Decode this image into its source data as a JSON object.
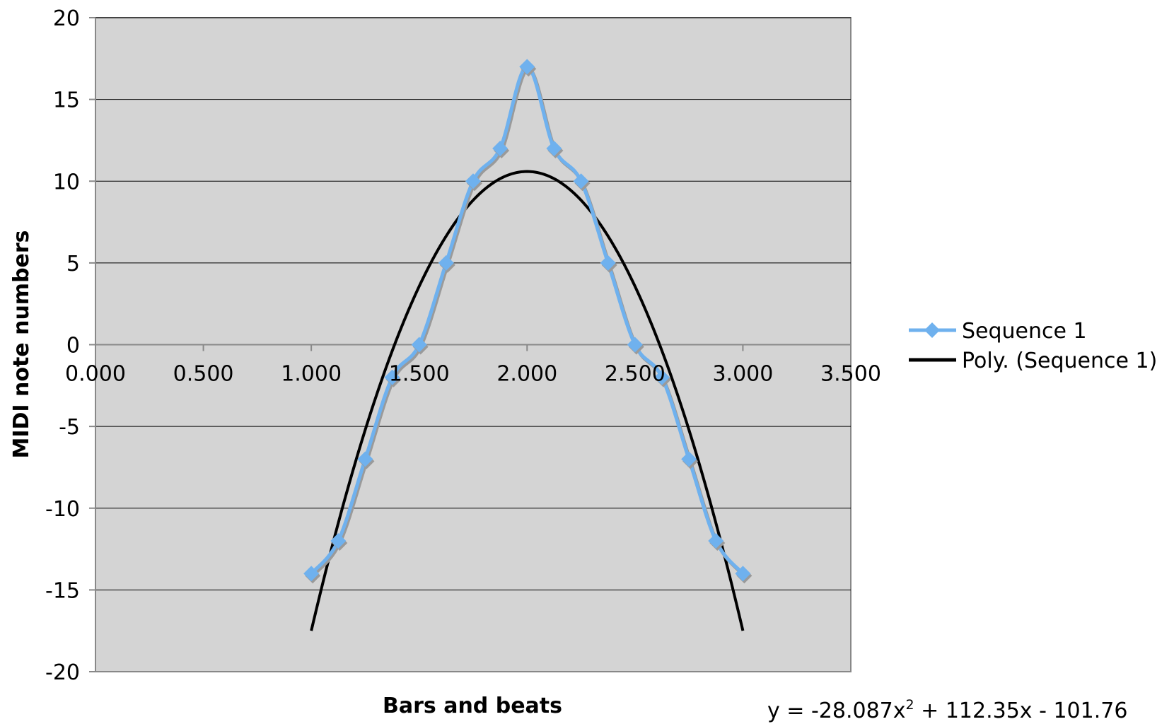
{
  "chart_data": {
    "type": "line",
    "title": "",
    "xlabel": "Bars and beats",
    "ylabel": "MIDI note numbers",
    "xlim": [
      0,
      3.5
    ],
    "ylim": [
      -20,
      20
    ],
    "x_ticks": [
      "0.000",
      "0.500",
      "1.000",
      "1.500",
      "2.000",
      "2.500",
      "3.000",
      "3.500"
    ],
    "y_ticks": [
      "20",
      "15",
      "10",
      "5",
      "0",
      "-5",
      "-10",
      "-15",
      "-20"
    ],
    "grid": "horizontal",
    "legend_position": "right",
    "plot_background": "#d4d4d4",
    "series": [
      {
        "name": "Sequence 1",
        "color": "#6fb1ee",
        "marker": "diamond",
        "smoothed": true,
        "x": [
          1.0,
          1.125,
          1.25,
          1.375,
          1.5,
          1.625,
          1.75,
          1.875,
          2.0,
          2.125,
          2.25,
          2.375,
          2.5,
          2.625,
          2.75,
          2.875,
          3.0
        ],
        "y": [
          -14,
          -12,
          -7,
          -2,
          0,
          5,
          10,
          12,
          17,
          12,
          10,
          5,
          0,
          -2,
          -7,
          -12,
          -14
        ]
      },
      {
        "name": "Poly. (Sequence 1)",
        "color": "#000000",
        "type": "trendline",
        "coefficients": [
          -28.087,
          112.35,
          -101.76
        ],
        "x_range": [
          1.0,
          3.0
        ]
      }
    ],
    "equation": {
      "prefix": "y = -28.087x",
      "superscript": "2",
      "suffix": " + 112.35x - 101.76"
    }
  }
}
